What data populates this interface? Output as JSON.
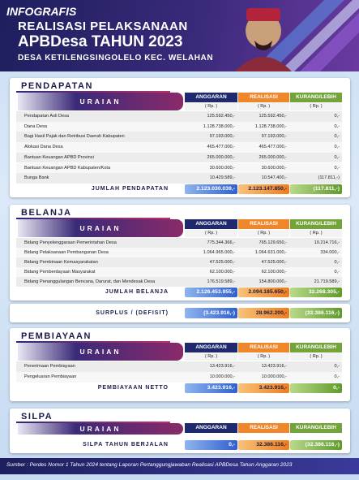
{
  "header": {
    "tag": "INFOGRAFIS",
    "title": "REALISASI PELAKSANAAN",
    "title2": "APBDesa TAHUN 2023",
    "subtitle": "DESA KETILENGSINGOLELO KEC. WELAHAN"
  },
  "pendapatan": {
    "title": "PENDAPATAN",
    "columns": [
      "URAIAN",
      "ANGGARAN",
      "REALISASI",
      "KURANG/LEBIH"
    ],
    "units": [
      "( Rp. )",
      "( Rp. )",
      "( Rp. )"
    ],
    "rows": [
      [
        "Pendapatan Asli Desa",
        "125.592.450,-",
        "125.592.450,-",
        "0,-"
      ],
      [
        "Dana Desa",
        "1.128.738.000,-",
        "1.128.738.000,-",
        "0,-"
      ],
      [
        "Bagi Hasil Pajak dan Retribusi Daerah Kabupaten",
        "97.193.000,-",
        "97.193.000,-",
        "0,-"
      ],
      [
        "Alokasi Dana Desa",
        "465.477.000,-",
        "465.477.000,-",
        "0,-"
      ],
      [
        "Bantuan Keuangan APBD Provinsi",
        "265.000.000,-",
        "265.000.000,-",
        "0,-"
      ],
      [
        "Bantuan Keuangan APBD Kabupaten/Kota",
        "30.600.000,-",
        "30.600.000,-",
        "0,-"
      ],
      [
        "Bunga Bank",
        "10.429.589,-",
        "10.547.400,-",
        "(117.811,-)"
      ]
    ],
    "total": [
      "JUMLAH PENDAPATAN",
      "2.123.030.039,-",
      "2.123.147.850,-",
      "(117.811,-)"
    ]
  },
  "belanja": {
    "title": "BELANJA",
    "columns": [
      "URAIAN",
      "ANGGARAN",
      "REALISASI",
      "KURANG/LEBIH"
    ],
    "units": [
      "( Rp. )",
      "( Rp. )",
      "( Rp. )"
    ],
    "rows": [
      [
        "Bidang Penyelenggaraan Pemerintahan Desa",
        "775.344.366,-",
        "765.129.650,-",
        "10.214.716,-"
      ],
      [
        "Bidang Pelaksanaan Pembangunan Desa",
        "1.064.965.000,-",
        "1.064.631.000,-",
        "334.000,-"
      ],
      [
        "Bidang Pembinaan Kemasyarakatan",
        "47.525.000,-",
        "47.525.000,-",
        "0,-"
      ],
      [
        "Bidang Pemberdayaan Masyarakat",
        "62.100.000,-",
        "62.100.000,-",
        "0,-"
      ],
      [
        "Bidang Penanggulangan Bencana, Darurat, dan Mendesak Desa",
        "176.519.589,-",
        "154.800.000,-",
        "21.719.589,-"
      ]
    ],
    "total": [
      "JUMLAH BELANJA",
      "2.126.453.955,-",
      "2.094.185.650,-",
      "32.268.305,-"
    ],
    "surplus": [
      "SURPLUS / (DEFISIT)",
      "(3.423.916,-)",
      "28.962.200,-",
      "(32.386.116,-)"
    ]
  },
  "pembiayaan": {
    "title": "PEMBIAYAAN",
    "columns": [
      "URAIAN",
      "ANGGARAN",
      "REALISASI",
      "KURANG/LEBIH"
    ],
    "units": [
      "( Rp. )",
      "( Rp. )",
      "( Rp. )"
    ],
    "rows": [
      [
        "Penerimaan Pembiayaan",
        "13.423.916,-",
        "13.423.916,-",
        "0,-"
      ],
      [
        "Pengeluaran Pembiayaan",
        "10.000.000,-",
        "10.000.000,-",
        "0,-"
      ]
    ],
    "total": [
      "PEMBIAYAAN NETTO",
      "3.423.916,-",
      "3.423.916,-",
      "0,-"
    ]
  },
  "silpa": {
    "title": "SILPA",
    "columns": [
      "URAIAN",
      "ANGGARAN",
      "REALISASI",
      "KURANG/LEBIH"
    ],
    "total": [
      "SILPA TAHUN BERJALAN",
      "0,-",
      "32.386.116,-",
      "(32.386.116,-)"
    ]
  },
  "footer": "Sumber : Perdes Nomor 1 Tahun 2024 tentang Laporan Pertanggungjawaban Realisasi APBDesa Tahun Anggaran 2023"
}
